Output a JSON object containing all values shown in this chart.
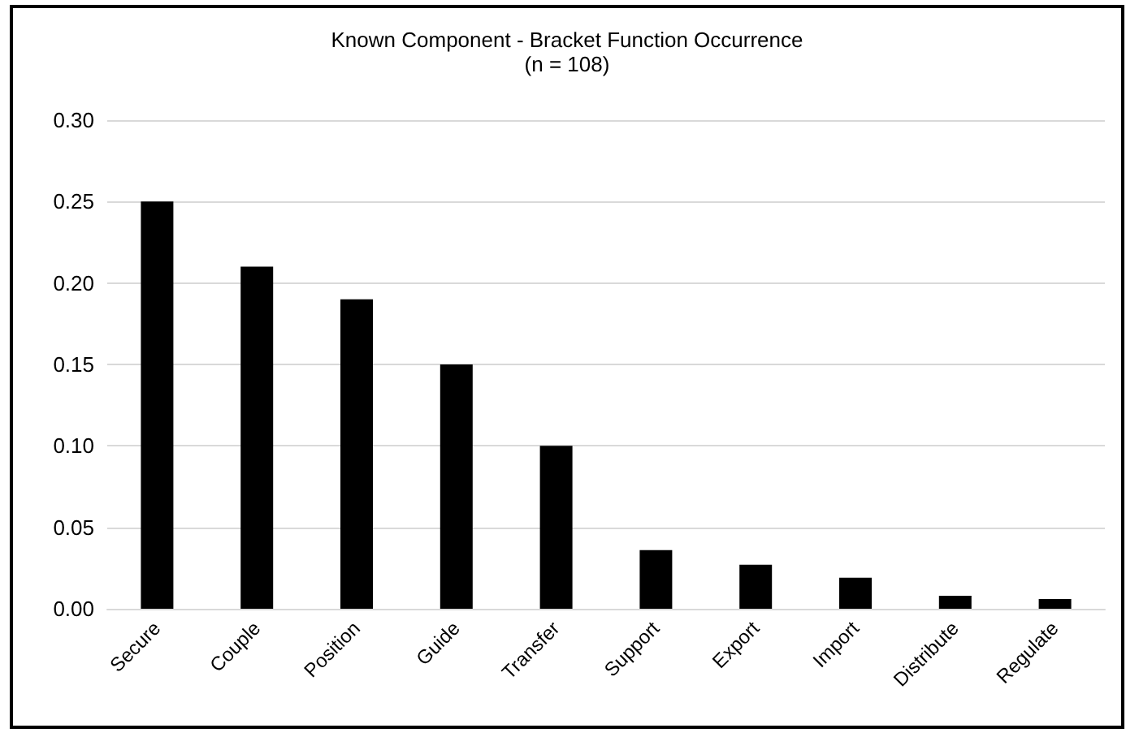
{
  "chart_data": {
    "type": "bar",
    "title": "Known Component - Bracket Function Occurrence",
    "subtitle": "(n = 108)",
    "categories": [
      "Secure",
      "Couple",
      "Position",
      "Guide",
      "Transfer",
      "Support",
      "Export",
      "Import",
      "Distribute",
      "Regulate"
    ],
    "values": [
      0.25,
      0.21,
      0.19,
      0.15,
      0.1,
      0.036,
      0.027,
      0.019,
      0.008,
      0.006
    ],
    "color": "#000000",
    "ylim": [
      0,
      0.3
    ],
    "yticks": [
      {
        "value": 0,
        "label": "0.00"
      },
      {
        "value": 0.05,
        "label": "0.05"
      },
      {
        "value": 0.1,
        "label": "0.10"
      },
      {
        "value": 0.15,
        "label": "0.15"
      },
      {
        "value": 0.2,
        "label": "0.20"
      },
      {
        "value": 0.25,
        "label": "0.25"
      },
      {
        "value": 0.3,
        "label": "0.30"
      }
    ],
    "grid": "y"
  }
}
